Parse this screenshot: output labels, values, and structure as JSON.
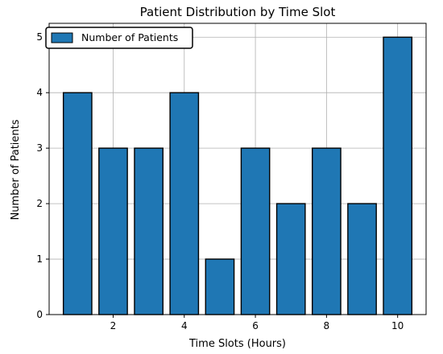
{
  "chart_data": {
    "type": "bar",
    "title": "Patient Distribution by Time Slot",
    "xlabel": "Time Slots (Hours)",
    "ylabel": "Number of Patients",
    "x": [
      1,
      2,
      3,
      4,
      5,
      6,
      7,
      8,
      9,
      10
    ],
    "series": [
      {
        "name": "Number of Patients",
        "values": [
          4,
          3,
          3,
          4,
          1,
          3,
          2,
          3,
          2,
          5
        ]
      }
    ],
    "xticks": [
      2,
      4,
      6,
      8,
      10
    ],
    "yticks": [
      0,
      1,
      2,
      3,
      4,
      5
    ],
    "xlim": [
      0.2,
      10.8
    ],
    "ylim": [
      0,
      5.25
    ],
    "grid": true,
    "legend_position": "upper-left",
    "bar_color": "#1f77b4",
    "bar_edge_color": "#000000"
  }
}
